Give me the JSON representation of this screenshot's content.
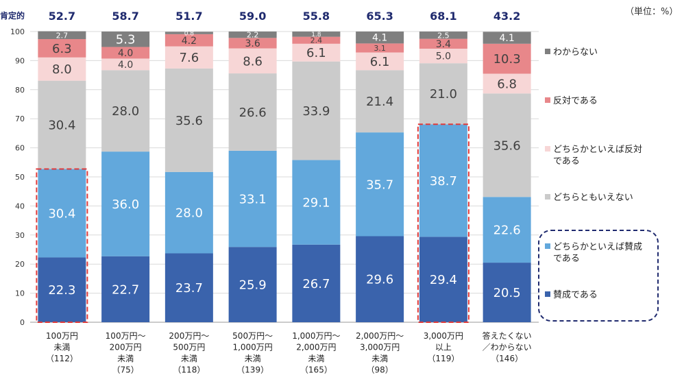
{
  "unit_note": "（単位：%）",
  "chart_data": {
    "type": "bar",
    "stacked": true,
    "positive_label": "肯定的",
    "positive_totals": [
      52.7,
      58.7,
      51.7,
      59.0,
      55.8,
      65.3,
      68.1,
      43.2
    ],
    "categories": [
      [
        "100万円",
        "未満",
        "（112）"
      ],
      [
        "100万円～",
        "200万円",
        "未満",
        "（75）"
      ],
      [
        "200万円～",
        "500万円",
        "未満",
        "（118）"
      ],
      [
        "500万円～",
        "1,000万円",
        "未満",
        "（139）"
      ],
      [
        "1,000万円～",
        "2,000万円",
        "未満",
        "（165）"
      ],
      [
        "2,000万円～",
        "3,000万円",
        "未満",
        "（98）"
      ],
      [
        "3,000万円",
        "以上",
        "（119）"
      ],
      [
        "答えたくない",
        "／わからない",
        "（146）"
      ]
    ],
    "ylim": [
      0,
      100
    ],
    "yticks": [
      0,
      10,
      20,
      30,
      40,
      50,
      60,
      70,
      80,
      90,
      100
    ],
    "series": [
      {
        "name": "賛成である",
        "color": "#3a63ac",
        "values": [
          22.3,
          22.7,
          23.7,
          25.9,
          26.7,
          29.6,
          29.4,
          20.5
        ],
        "labels": [
          "22.3",
          "22.7",
          "23.7",
          "25.9",
          "26.7",
          "29.6",
          "29.4",
          "20.5"
        ]
      },
      {
        "name": "どちらかといえば賛成である",
        "color": "#62a8dc",
        "values": [
          30.4,
          36.0,
          28.0,
          33.1,
          29.1,
          35.7,
          38.7,
          22.6
        ],
        "labels": [
          "30.4",
          "36.0",
          "28.0",
          "33.1",
          "29.1",
          "35.7",
          "38.7",
          "22.6"
        ]
      },
      {
        "name": "どちらともいえない",
        "color": "#cbcbcb",
        "values": [
          30.4,
          28.0,
          35.6,
          26.6,
          33.9,
          21.4,
          21.0,
          35.6
        ],
        "labels": [
          "30.4",
          "28.0",
          "35.6",
          "26.6",
          "33.9",
          "21.4",
          "21.0",
          "35.6"
        ]
      },
      {
        "name": "どちらかといえば反対である",
        "color": "#f7d6d6",
        "values": [
          8.0,
          4.0,
          7.6,
          8.6,
          6.1,
          6.1,
          5.0,
          6.8
        ],
        "labels": [
          "8.0",
          "4.0",
          "7.6",
          "8.6",
          "6.1",
          "6.1",
          "5.0",
          "6.8"
        ]
      },
      {
        "name": "反対である",
        "color": "#e8878a",
        "values": [
          6.3,
          4.0,
          4.2,
          3.6,
          2.4,
          3.1,
          3.4,
          10.3
        ],
        "labels": [
          "6.3",
          "4.0",
          "4.2",
          "3.6",
          "2.4",
          "3.1",
          "3.4",
          "10.3"
        ]
      },
      {
        "name": "わからない",
        "color": "#7f7f7f",
        "values": [
          2.7,
          5.3,
          0.8,
          2.2,
          1.8,
          4.1,
          2.5,
          4.1
        ],
        "labels": [
          "2.7",
          "5.3",
          "0.8",
          "2.2",
          "1.8",
          "4.1",
          "2.5",
          "4.1"
        ]
      }
    ],
    "legend": {
      "placement": "right",
      "items": [
        [
          "わからない"
        ],
        [
          "反対である"
        ],
        [
          "どちらかといえば反対",
          "である"
        ],
        [
          "どちらともいえない"
        ],
        [
          "どちらかといえば賛成",
          "である"
        ],
        [
          "賛成である"
        ]
      ]
    },
    "highlighted_categories": [
      0,
      6
    ],
    "highlighted_legend_group": [
      4,
      5
    ],
    "grid": true
  }
}
